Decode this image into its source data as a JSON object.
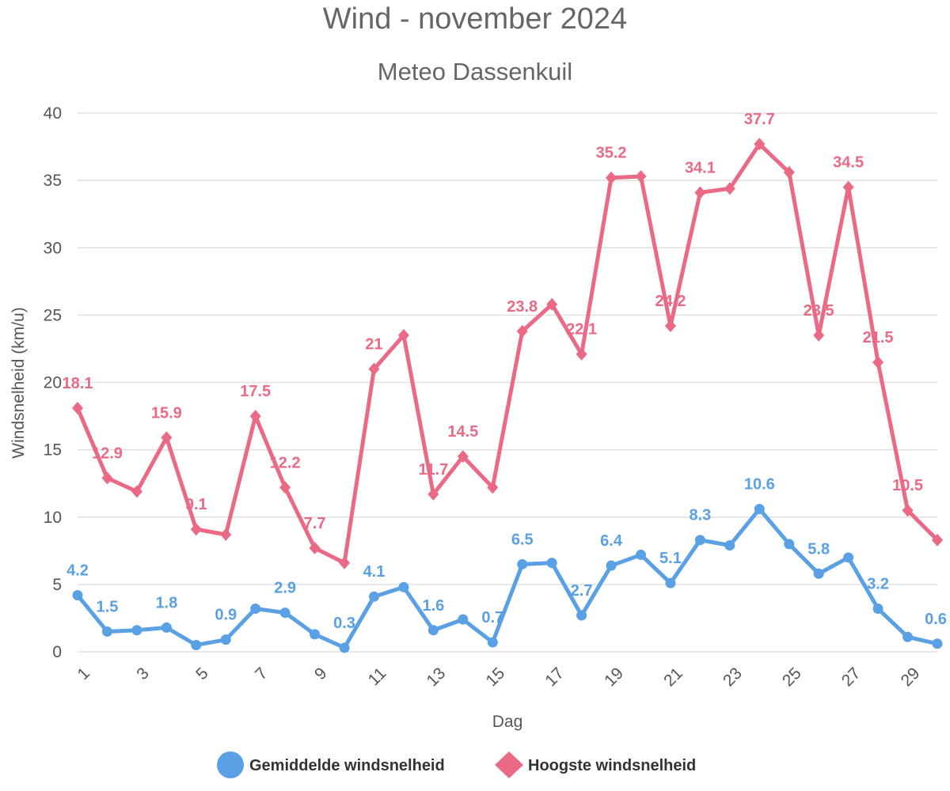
{
  "chart_data": {
    "type": "line",
    "title": "Wind - november 2024",
    "subtitle": "Meteo Dassenkuil",
    "xlabel": "Dag",
    "ylabel": "Windsnelheid (km/u)",
    "x": [
      1,
      2,
      3,
      4,
      5,
      6,
      7,
      8,
      9,
      10,
      11,
      12,
      13,
      14,
      15,
      16,
      17,
      18,
      19,
      20,
      21,
      22,
      23,
      24,
      25,
      26,
      27,
      28,
      29,
      30
    ],
    "x_tick_labels": [
      "1",
      "3",
      "5",
      "7",
      "9",
      "11",
      "13",
      "15",
      "17",
      "19",
      "21",
      "23",
      "25",
      "27",
      "29"
    ],
    "ylim": [
      0,
      40
    ],
    "y_ticks": [
      0,
      5,
      10,
      15,
      20,
      25,
      30,
      35,
      40
    ],
    "grid": true,
    "legend_position": "bottom",
    "series": [
      {
        "name": "Gemiddelde windsnelheid",
        "color": "#5aa0e4",
        "marker": "circle",
        "values": [
          4.2,
          1.5,
          1.6,
          1.8,
          0.5,
          0.9,
          3.2,
          2.9,
          1.3,
          0.3,
          4.1,
          4.8,
          1.6,
          2.4,
          0.7,
          6.5,
          6.6,
          2.7,
          6.4,
          7.2,
          5.1,
          8.3,
          7.9,
          10.6,
          8.0,
          5.8,
          7.0,
          3.2,
          1.1,
          0.6
        ],
        "labeled_days": [
          1,
          2,
          4,
          6,
          8,
          10,
          11,
          13,
          15,
          16,
          18,
          19,
          21,
          22,
          24,
          26,
          28,
          30
        ]
      },
      {
        "name": "Hoogste windsnelheid",
        "color": "#ea6a85",
        "marker": "diamond",
        "values": [
          18.1,
          12.9,
          11.9,
          15.9,
          9.1,
          8.7,
          17.5,
          12.2,
          7.7,
          6.6,
          21,
          23.5,
          11.7,
          14.5,
          12.2,
          23.8,
          25.8,
          22.1,
          35.2,
          35.3,
          24.2,
          34.1,
          34.4,
          37.7,
          35.6,
          23.5,
          34.5,
          21.5,
          10.5,
          8.3
        ],
        "labeled_days": [
          1,
          2,
          4,
          5,
          7,
          8,
          9,
          11,
          13,
          14,
          16,
          18,
          19,
          21,
          22,
          24,
          26,
          27,
          28,
          29
        ]
      }
    ]
  }
}
